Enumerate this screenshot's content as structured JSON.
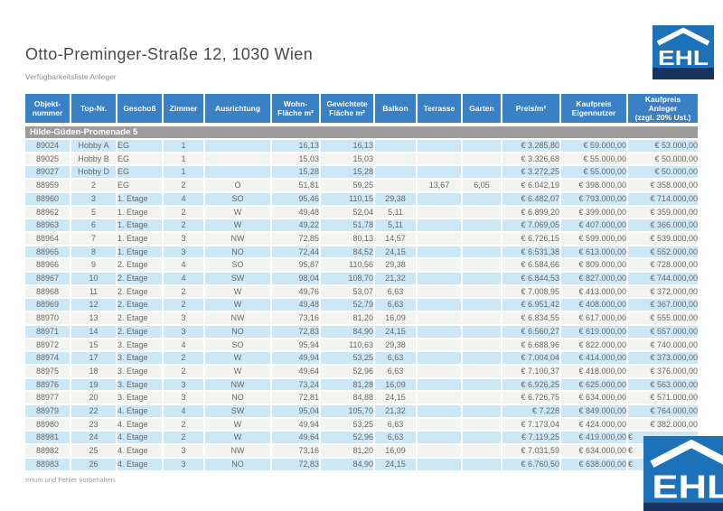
{
  "page": {
    "title": "Otto-Preminger-Straße 12, 1030 Wien",
    "subtitle": "Verfügbarkeitsliste Anleger",
    "footer_note": "Irrtum und Fehler vorbehalten.",
    "logo_text": "EHL"
  },
  "colors": {
    "header_blue": "#3a80c4",
    "section_gray": "#9c9c9c",
    "row_light_blue": "#cce7f5",
    "row_off_white": "#f3f4ef",
    "logo_blue": "#1d71b8",
    "logo_navy": "#17355e"
  },
  "table": {
    "section_label": "Hilde-Güden-Promenade 5",
    "columns": [
      {
        "key": "objektnummer",
        "label": "Objekt-\nnummer"
      },
      {
        "key": "top-nr",
        "label": "Top-Nr."
      },
      {
        "key": "geschoss",
        "label": "Geschoß"
      },
      {
        "key": "zimmer",
        "label": "Zimmer"
      },
      {
        "key": "ausrichtung",
        "label": "Ausrichtung"
      },
      {
        "key": "wohnflaeche",
        "label": "Wohn-\nFläche m²"
      },
      {
        "key": "gewichtete-flaeche",
        "label": "Gewichtete\nFläche m²"
      },
      {
        "key": "balkon",
        "label": "Balkon"
      },
      {
        "key": "terrasse",
        "label": "Terrasse"
      },
      {
        "key": "garten",
        "label": "Garten"
      },
      {
        "key": "preis-m2",
        "label": "Preis/m²"
      },
      {
        "key": "kaufpreis-eigennutzer",
        "label": "Kaufpreis\nEigennutzer"
      },
      {
        "key": "kaufpreis-anleger",
        "label": "Kaufpreis\nAnleger\n(zzgl. 20% Ust.)"
      }
    ],
    "rows": [
      [
        "89024",
        "Hobby A",
        "EG",
        "1",
        "",
        "16,13",
        "16,13",
        "",
        "",
        "",
        "€ 3.285,80",
        "€ 59.000,00",
        "€ 53.000,00"
      ],
      [
        "89025",
        "Hobby B",
        "EG",
        "1",
        "",
        "15,03",
        "15,03",
        "",
        "",
        "",
        "€ 3.326,68",
        "€ 55.000,00",
        "€ 50.000,00"
      ],
      [
        "89027",
        "Hobby D",
        "EG",
        "1",
        "",
        "15,28",
        "15,28",
        "",
        "",
        "",
        "€ 3.272,25",
        "€ 55.000,00",
        "€ 50.000,00"
      ],
      [
        "88959",
        "2",
        "EG",
        "2",
        "O",
        "51,81",
        "59,25",
        "",
        "13,67",
        "6,05",
        "€ 6.042,19",
        "€ 398.000,00",
        "€ 358.000,00"
      ],
      [
        "88960",
        "3",
        "1. Etage",
        "4",
        "SO",
        "95,46",
        "110,15",
        "29,38",
        "",
        "",
        "€ 6.482,07",
        "€ 793.000,00",
        "€ 714.000,00"
      ],
      [
        "88962",
        "5",
        "1. Etage",
        "2",
        "W",
        "49,48",
        "52,04",
        "5,11",
        "",
        "",
        "€ 6.899,20",
        "€ 399.000,00",
        "€ 359.000,00"
      ],
      [
        "88963",
        "6",
        "1. Etage",
        "2",
        "W",
        "49,22",
        "51,78",
        "5,11",
        "",
        "",
        "€ 7.069,05",
        "€ 407.000,00",
        "€ 366.000,00"
      ],
      [
        "88964",
        "7",
        "1. Etage",
        "3",
        "NW",
        "72,85",
        "80,13",
        "14,57",
        "",
        "",
        "€ 6.726,15",
        "€ 599.000,00",
        "€ 539.000,00"
      ],
      [
        "88965",
        "8",
        "1. Etage",
        "3",
        "NO",
        "72,44",
        "84,52",
        "24,15",
        "",
        "",
        "€ 6.531,38",
        "€ 613.000,00",
        "€ 552.000,00"
      ],
      [
        "88966",
        "9",
        "2. Etage",
        "4",
        "SO",
        "95,87",
        "110,56",
        "29,38",
        "",
        "",
        "€ 6.584,66",
        "€ 809.000,00",
        "€ 728.000,00"
      ],
      [
        "88967",
        "10",
        "2. Etage",
        "4",
        "SW",
        "98,04",
        "108,70",
        "21,32",
        "",
        "",
        "€ 6.844,53",
        "€ 827.000,00",
        "€ 744.000,00"
      ],
      [
        "88968",
        "11",
        "2. Etage",
        "2",
        "W",
        "49,76",
        "53,07",
        "6,63",
        "",
        "",
        "€ 7.008,95",
        "€ 413.000,00",
        "€ 372.000,00"
      ],
      [
        "88969",
        "12",
        "2. Etage",
        "2",
        "W",
        "49,48",
        "52,79",
        "6,63",
        "",
        "",
        "€ 6.951,42",
        "€ 408.000,00",
        "€ 367.000,00"
      ],
      [
        "88970",
        "13",
        "2. Etage",
        "3",
        "NW",
        "73,16",
        "81,20",
        "16,09",
        "",
        "",
        "€ 6.834,55",
        "€ 617.000,00",
        "€ 555.000,00"
      ],
      [
        "88971",
        "14",
        "2. Etage",
        "3",
        "NO",
        "72,83",
        "84,90",
        "24,15",
        "",
        "",
        "€ 6.560,27",
        "€ 619.000,00",
        "€ 557.000,00"
      ],
      [
        "88972",
        "15",
        "3. Etage",
        "4",
        "SO",
        "95,94",
        "110,63",
        "29,38",
        "",
        "",
        "€ 6.688,96",
        "€ 822.000,00",
        "€ 740.000,00"
      ],
      [
        "88974",
        "17",
        "3. Etage",
        "2",
        "W",
        "49,94",
        "53,25",
        "6,63",
        "",
        "",
        "€ 7.004,04",
        "€ 414.000,00",
        "€ 373.000,00"
      ],
      [
        "88975",
        "18",
        "3. Etage",
        "2",
        "W",
        "49,64",
        "52,96",
        "6,63",
        "",
        "",
        "€ 7.100,37",
        "€ 418.000,00",
        "€ 376.000,00"
      ],
      [
        "88976",
        "19",
        "3. Etage",
        "3",
        "NW",
        "73,24",
        "81,28",
        "16,09",
        "",
        "",
        "€ 6.926,25",
        "€ 625.000,00",
        "€ 563.000,00"
      ],
      [
        "88977",
        "20",
        "3. Etage",
        "3",
        "NO",
        "72,81",
        "84,88",
        "24,15",
        "",
        "",
        "€ 6.726,75",
        "€ 634.000,00",
        "€ 571.000,00"
      ],
      [
        "88979",
        "22",
        "4. Etage",
        "4",
        "SW",
        "95,04",
        "105,70",
        "21,32",
        "",
        "",
        "€ 7.228",
        "€ 849.000,00",
        "€ 764.000,00"
      ],
      [
        "88980",
        "23",
        "4. Etage",
        "2",
        "W",
        "49,94",
        "53,25",
        "6,63",
        "",
        "",
        "€ 7.173,04",
        "€ 424.000,00",
        "€ 382.000,00"
      ],
      [
        "88981",
        "24",
        "4. Etage",
        "2",
        "W",
        "49,64",
        "52,96",
        "6,63",
        "",
        "",
        "€ 7.119,25",
        "€ 419.000,00",
        "€"
      ],
      [
        "88982",
        "25",
        "4. Etage",
        "3",
        "NW",
        "73,16",
        "81,20",
        "16,09",
        "",
        "",
        "€ 7.031,59",
        "€ 634.000,00",
        "€"
      ],
      [
        "88983",
        "26",
        "4. Etage",
        "3",
        "NO",
        "72,83",
        "84,90",
        "24,15",
        "",
        "",
        "€ 6.760,50",
        "€ 638.000,00",
        "€"
      ]
    ]
  }
}
